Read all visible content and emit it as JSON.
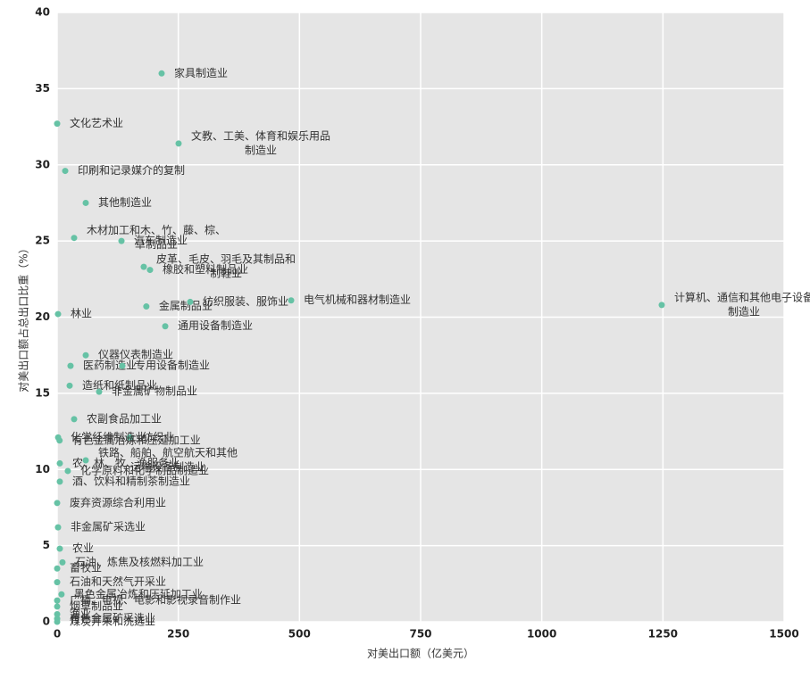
{
  "chart_data": {
    "type": "scatter",
    "xlabel": "对美出口额（亿美元）",
    "ylabel": "对美出口额占总出口比重（%）",
    "xlim": [
      0,
      1500
    ],
    "ylim": [
      0,
      40
    ],
    "xticks": [
      0,
      250,
      500,
      750,
      1000,
      1250,
      1500
    ],
    "yticks": [
      0,
      5,
      10,
      15,
      20,
      25,
      30,
      35,
      40
    ],
    "grid": true,
    "color": "#66c2a5",
    "x": [
      215.6,
      0,
      250.6,
      16.6,
      59,
      35,
      132.7,
      178.7,
      191.6,
      1.8,
      184,
      274.5,
      482.8,
      1247.5,
      223,
      59,
      27.6,
      134.5,
      25.8,
      86.6,
      35,
      2,
      150,
      5,
      5.5,
      59,
      22,
      5.5,
      0,
      1.8,
      5.5,
      11,
      0,
      0,
      9,
      0,
      0,
      0,
      0,
      0
    ],
    "values": [
      36.0,
      32.7,
      31.4,
      29.6,
      27.5,
      25.2,
      25.0,
      23.3,
      23.1,
      20.2,
      20.7,
      21.0,
      21.1,
      20.8,
      19.4,
      17.5,
      16.8,
      16.8,
      15.5,
      15.1,
      13.3,
      12.1,
      12.1,
      11.9,
      10.4,
      10.6,
      9.9,
      9.2,
      7.8,
      6.2,
      4.8,
      3.9,
      3.5,
      2.6,
      1.8,
      1.4,
      1.0,
      0.5,
      0.2,
      0.0
    ],
    "labels": [
      [
        "家具制造业"
      ],
      [
        "文化艺术业"
      ],
      [
        "文教、工美、体育和娱乐用品",
        "制造业"
      ],
      [
        "印刷和记录媒介的复制"
      ],
      [
        "其他制造业"
      ],
      [
        "木材加工和木、竹、藤、棕、",
        "草制品业"
      ],
      [
        "汽车制造业"
      ],
      [
        "皮革、毛皮、羽毛及其制品和",
        "制鞋业"
      ],
      [
        "橡胶和塑料制品业"
      ],
      [
        "林业"
      ],
      [
        "金属制品业"
      ],
      [
        "纺织服装、服饰业"
      ],
      [
        "电气机械和器材制造业"
      ],
      [
        "计算机、通信和其他电子设备",
        "制造业"
      ],
      [
        "通用设备制造业"
      ],
      [
        "仪器仪表制造业"
      ],
      [
        "医药制造业"
      ],
      [
        "专用设备制造业"
      ],
      [
        "造纸和纸制品业"
      ],
      [
        "非金属矿物制品业"
      ],
      [
        "农副食品加工业"
      ],
      [
        "化学纤维制造业"
      ],
      [
        "纺织业"
      ],
      [
        "有色金属冶炼和压延加工业"
      ],
      [
        "农、林、牧、渔服务业"
      ],
      [
        "铁路、船舶、航空航天和其他",
        "运输设备制造业"
      ],
      [
        "化学原料和化学制品制造业"
      ],
      [
        "酒、饮料和精制茶制造业"
      ],
      [
        "废弃资源综合利用业"
      ],
      [
        "非金属矿采选业"
      ],
      [
        "农业"
      ],
      [
        "石油、炼焦及核燃料加工业"
      ],
      [
        "畜牧业"
      ],
      [
        "石油和天然气开采业"
      ],
      [
        "黑色金属冶炼和压延加工业"
      ],
      [
        "广播、电视、电影和影视录音制作业"
      ],
      [
        "烟草制品业"
      ],
      [
        "渔业"
      ],
      [
        "有色金属矿采选业"
      ],
      [
        "煤炭开采和洗选业"
      ]
    ]
  }
}
